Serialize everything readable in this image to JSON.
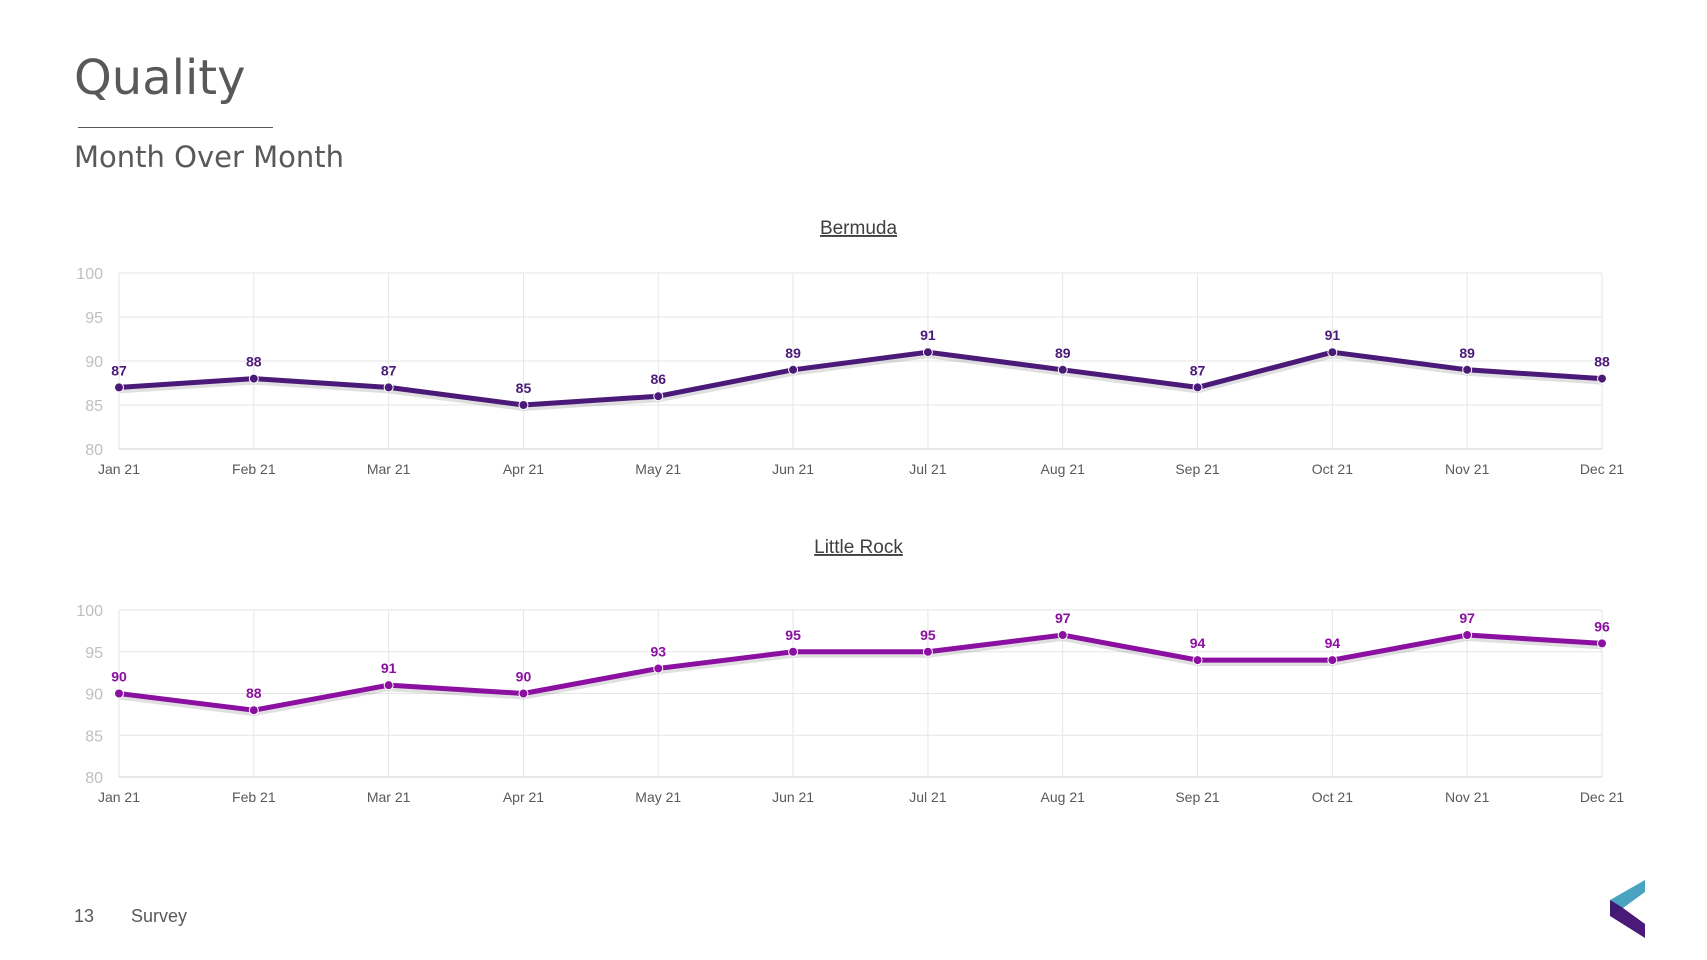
{
  "slide": {
    "title": "Quality",
    "subtitle": "Month Over Month",
    "page_number": "13",
    "footer_label": "Survey"
  },
  "colors": {
    "grid": "#e6e6e6",
    "axis_text": "#bfbfbf",
    "tick_text": "#595959"
  },
  "chart_data": [
    {
      "type": "line",
      "title": "Bermuda",
      "categories": [
        "Jan 21",
        "Feb 21",
        "Mar 21",
        "Apr 21",
        "May 21",
        "Jun 21",
        "Jul 21",
        "Aug 21",
        "Sep 21",
        "Oct 21",
        "Nov 21",
        "Dec 21"
      ],
      "series": [
        {
          "values": [
            87,
            88,
            87,
            85,
            86,
            89,
            91,
            89,
            87,
            91,
            89,
            88
          ],
          "color": "#4b1a78"
        }
      ],
      "ylim": [
        80,
        100
      ],
      "yticks": [
        80,
        85,
        90,
        95,
        100
      ],
      "grid": true,
      "data_labels": true
    },
    {
      "type": "line",
      "title": "Little Rock",
      "categories": [
        "Jan 21",
        "Feb 21",
        "Mar 21",
        "Apr 21",
        "May 21",
        "Jun 21",
        "Jul 21",
        "Aug 21",
        "Sep 21",
        "Oct 21",
        "Nov 21",
        "Dec 21"
      ],
      "series": [
        {
          "values": [
            90,
            88,
            91,
            90,
            93,
            95,
            95,
            97,
            94,
            94,
            97,
            96
          ],
          "color": "#8b0fa0"
        }
      ],
      "ylim": [
        80,
        100
      ],
      "yticks": [
        80,
        85,
        90,
        95,
        100
      ],
      "grid": true,
      "data_labels": true
    }
  ]
}
